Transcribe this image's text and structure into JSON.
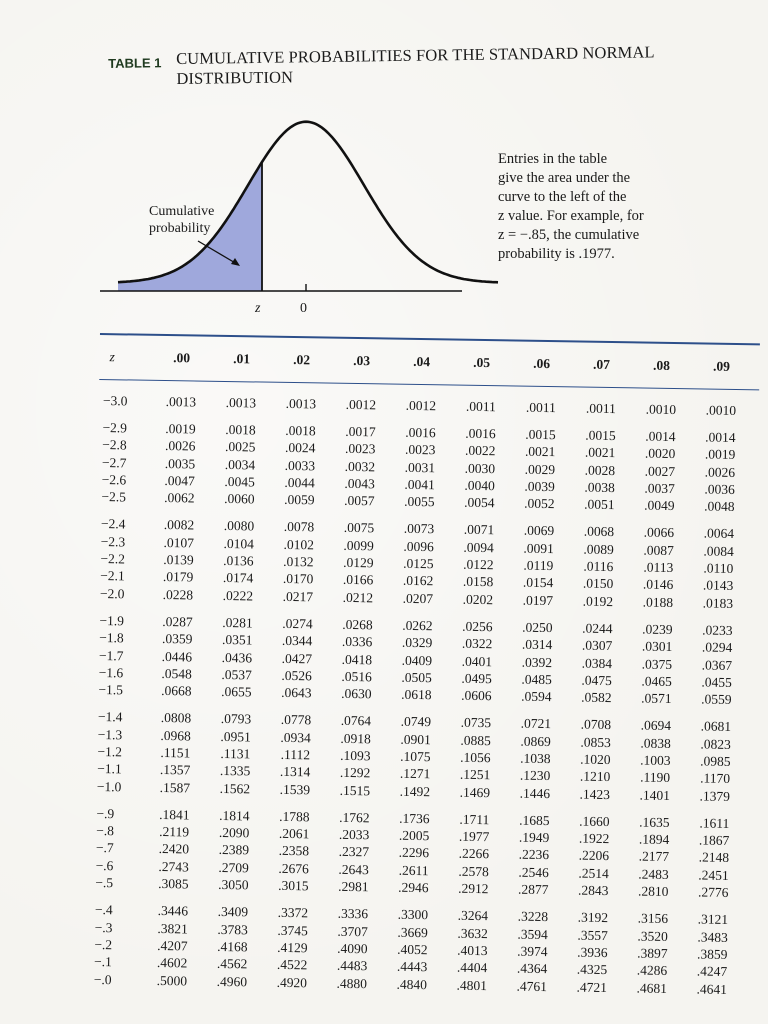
{
  "header": {
    "label": "TABLE 1",
    "title": "CUMULATIVE PROBABILITIES FOR THE STANDARD NORMAL DISTRIBUTION"
  },
  "figure": {
    "shaded_label_line1": "Cumulative",
    "shaded_label_line2": "probability",
    "axis_z_label": "z",
    "axis_zero_label": "0",
    "shade_color": "#9fa8dc",
    "note_lines": [
      "Entries in the table",
      "give the area under the",
      "curve to the left of the",
      "z value. For example, for",
      "z = −.85, the cumulative",
      "probability is .1977."
    ]
  },
  "table": {
    "rule_color": "#2d4f8a",
    "columns": [
      "z",
      ".00",
      ".01",
      ".02",
      ".03",
      ".04",
      ".05",
      ".06",
      ".07",
      ".08",
      ".09"
    ],
    "groups": [
      [
        {
          "z": "−3.0",
          "v": [
            ".0013",
            ".0013",
            ".0013",
            ".0012",
            ".0012",
            ".0011",
            ".0011",
            ".0011",
            ".0010",
            ".0010"
          ]
        }
      ],
      [
        {
          "z": "−2.9",
          "v": [
            ".0019",
            ".0018",
            ".0018",
            ".0017",
            ".0016",
            ".0016",
            ".0015",
            ".0015",
            ".0014",
            ".0014"
          ]
        },
        {
          "z": "−2.8",
          "v": [
            ".0026",
            ".0025",
            ".0024",
            ".0023",
            ".0023",
            ".0022",
            ".0021",
            ".0021",
            ".0020",
            ".0019"
          ]
        },
        {
          "z": "−2.7",
          "v": [
            ".0035",
            ".0034",
            ".0033",
            ".0032",
            ".0031",
            ".0030",
            ".0029",
            ".0028",
            ".0027",
            ".0026"
          ]
        },
        {
          "z": "−2.6",
          "v": [
            ".0047",
            ".0045",
            ".0044",
            ".0043",
            ".0041",
            ".0040",
            ".0039",
            ".0038",
            ".0037",
            ".0036"
          ]
        },
        {
          "z": "−2.5",
          "v": [
            ".0062",
            ".0060",
            ".0059",
            ".0057",
            ".0055",
            ".0054",
            ".0052",
            ".0051",
            ".0049",
            ".0048"
          ]
        }
      ],
      [
        {
          "z": "−2.4",
          "v": [
            ".0082",
            ".0080",
            ".0078",
            ".0075",
            ".0073",
            ".0071",
            ".0069",
            ".0068",
            ".0066",
            ".0064"
          ]
        },
        {
          "z": "−2.3",
          "v": [
            ".0107",
            ".0104",
            ".0102",
            ".0099",
            ".0096",
            ".0094",
            ".0091",
            ".0089",
            ".0087",
            ".0084"
          ]
        },
        {
          "z": "−2.2",
          "v": [
            ".0139",
            ".0136",
            ".0132",
            ".0129",
            ".0125",
            ".0122",
            ".0119",
            ".0116",
            ".0113",
            ".0110"
          ]
        },
        {
          "z": "−2.1",
          "v": [
            ".0179",
            ".0174",
            ".0170",
            ".0166",
            ".0162",
            ".0158",
            ".0154",
            ".0150",
            ".0146",
            ".0143"
          ]
        },
        {
          "z": "−2.0",
          "v": [
            ".0228",
            ".0222",
            ".0217",
            ".0212",
            ".0207",
            ".0202",
            ".0197",
            ".0192",
            ".0188",
            ".0183"
          ]
        }
      ],
      [
        {
          "z": "−1.9",
          "v": [
            ".0287",
            ".0281",
            ".0274",
            ".0268",
            ".0262",
            ".0256",
            ".0250",
            ".0244",
            ".0239",
            ".0233"
          ]
        },
        {
          "z": "−1.8",
          "v": [
            ".0359",
            ".0351",
            ".0344",
            ".0336",
            ".0329",
            ".0322",
            ".0314",
            ".0307",
            ".0301",
            ".0294"
          ]
        },
        {
          "z": "−1.7",
          "v": [
            ".0446",
            ".0436",
            ".0427",
            ".0418",
            ".0409",
            ".0401",
            ".0392",
            ".0384",
            ".0375",
            ".0367"
          ]
        },
        {
          "z": "−1.6",
          "v": [
            ".0548",
            ".0537",
            ".0526",
            ".0516",
            ".0505",
            ".0495",
            ".0485",
            ".0475",
            ".0465",
            ".0455"
          ]
        },
        {
          "z": "−1.5",
          "v": [
            ".0668",
            ".0655",
            ".0643",
            ".0630",
            ".0618",
            ".0606",
            ".0594",
            ".0582",
            ".0571",
            ".0559"
          ]
        }
      ],
      [
        {
          "z": "−1.4",
          "v": [
            ".0808",
            ".0793",
            ".0778",
            ".0764",
            ".0749",
            ".0735",
            ".0721",
            ".0708",
            ".0694",
            ".0681"
          ]
        },
        {
          "z": "−1.3",
          "v": [
            ".0968",
            ".0951",
            ".0934",
            ".0918",
            ".0901",
            ".0885",
            ".0869",
            ".0853",
            ".0838",
            ".0823"
          ]
        },
        {
          "z": "−1.2",
          "v": [
            ".1151",
            ".1131",
            ".1112",
            ".1093",
            ".1075",
            ".1056",
            ".1038",
            ".1020",
            ".1003",
            ".0985"
          ]
        },
        {
          "z": "−1.1",
          "v": [
            ".1357",
            ".1335",
            ".1314",
            ".1292",
            ".1271",
            ".1251",
            ".1230",
            ".1210",
            ".1190",
            ".1170"
          ]
        },
        {
          "z": "−1.0",
          "v": [
            ".1587",
            ".1562",
            ".1539",
            ".1515",
            ".1492",
            ".1469",
            ".1446",
            ".1423",
            ".1401",
            ".1379"
          ]
        }
      ],
      [
        {
          "z": "−.9",
          "v": [
            ".1841",
            ".1814",
            ".1788",
            ".1762",
            ".1736",
            ".1711",
            ".1685",
            ".1660",
            ".1635",
            ".1611"
          ]
        },
        {
          "z": "−.8",
          "v": [
            ".2119",
            ".2090",
            ".2061",
            ".2033",
            ".2005",
            ".1977",
            ".1949",
            ".1922",
            ".1894",
            ".1867"
          ]
        },
        {
          "z": "−.7",
          "v": [
            ".2420",
            ".2389",
            ".2358",
            ".2327",
            ".2296",
            ".2266",
            ".2236",
            ".2206",
            ".2177",
            ".2148"
          ]
        },
        {
          "z": "−.6",
          "v": [
            ".2743",
            ".2709",
            ".2676",
            ".2643",
            ".2611",
            ".2578",
            ".2546",
            ".2514",
            ".2483",
            ".2451"
          ]
        },
        {
          "z": "−.5",
          "v": [
            ".3085",
            ".3050",
            ".3015",
            ".2981",
            ".2946",
            ".2912",
            ".2877",
            ".2843",
            ".2810",
            ".2776"
          ]
        }
      ],
      [
        {
          "z": "−.4",
          "v": [
            ".3446",
            ".3409",
            ".3372",
            ".3336",
            ".3300",
            ".3264",
            ".3228",
            ".3192",
            ".3156",
            ".3121"
          ]
        },
        {
          "z": "−.3",
          "v": [
            ".3821",
            ".3783",
            ".3745",
            ".3707",
            ".3669",
            ".3632",
            ".3594",
            ".3557",
            ".3520",
            ".3483"
          ]
        },
        {
          "z": "−.2",
          "v": [
            ".4207",
            ".4168",
            ".4129",
            ".4090",
            ".4052",
            ".4013",
            ".3974",
            ".3936",
            ".3897",
            ".3859"
          ]
        },
        {
          "z": "−.1",
          "v": [
            ".4602",
            ".4562",
            ".4522",
            ".4483",
            ".4443",
            ".4404",
            ".4364",
            ".4325",
            ".4286",
            ".4247"
          ]
        },
        {
          "z": "−.0",
          "v": [
            ".5000",
            ".4960",
            ".4920",
            ".4880",
            ".4840",
            ".4801",
            ".4761",
            ".4721",
            ".4681",
            ".4641"
          ]
        }
      ]
    ]
  }
}
